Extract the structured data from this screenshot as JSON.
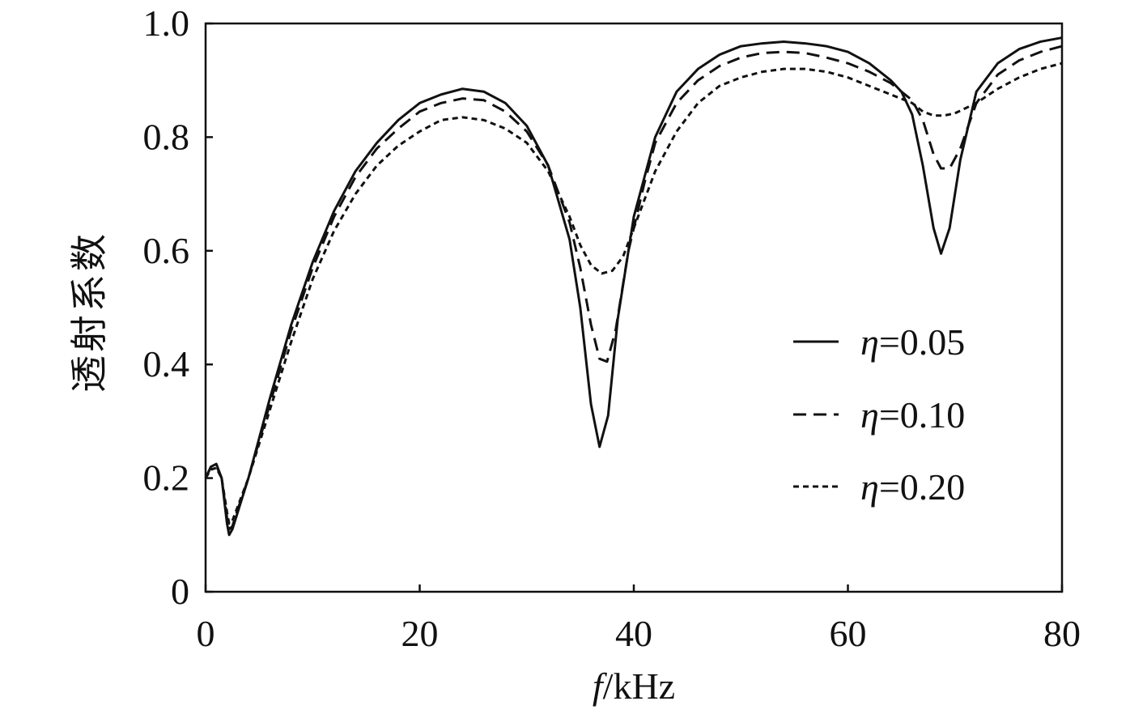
{
  "chart_data": {
    "type": "line",
    "title": "",
    "xlabel_var": "f",
    "xlabel_unit": "/kHz",
    "ylabel": "透射系数",
    "xlim": [
      0,
      80
    ],
    "ylim": [
      0,
      1.0
    ],
    "xticks": [
      0,
      20,
      40,
      60,
      80
    ],
    "xtick_labels": [
      "0",
      "20",
      "40",
      "60",
      "80"
    ],
    "yticks": [
      0,
      0.2,
      0.4,
      0.6,
      0.8,
      1.0
    ],
    "ytick_labels": [
      "0",
      "0.2",
      "0.4",
      "0.6",
      "0.8",
      "1.0"
    ],
    "grid": false,
    "legend_position": "right",
    "series": [
      {
        "name": "η=0.05",
        "legend_symbol": "η",
        "legend_value": "=0.05",
        "dash": "solid",
        "points": [
          [
            0,
            0.2
          ],
          [
            0.5,
            0.22
          ],
          [
            1,
            0.225
          ],
          [
            1.5,
            0.2
          ],
          [
            2,
            0.12
          ],
          [
            2.2,
            0.1
          ],
          [
            2.5,
            0.11
          ],
          [
            3,
            0.14
          ],
          [
            4,
            0.2
          ],
          [
            5,
            0.27
          ],
          [
            6,
            0.34
          ],
          [
            8,
            0.47
          ],
          [
            10,
            0.58
          ],
          [
            12,
            0.67
          ],
          [
            14,
            0.74
          ],
          [
            16,
            0.79
          ],
          [
            18,
            0.83
          ],
          [
            20,
            0.86
          ],
          [
            22,
            0.875
          ],
          [
            24,
            0.885
          ],
          [
            26,
            0.88
          ],
          [
            28,
            0.86
          ],
          [
            30,
            0.82
          ],
          [
            32,
            0.75
          ],
          [
            34,
            0.62
          ],
          [
            35,
            0.5
          ],
          [
            36,
            0.33
          ],
          [
            36.8,
            0.255
          ],
          [
            37.6,
            0.31
          ],
          [
            38.5,
            0.48
          ],
          [
            40,
            0.66
          ],
          [
            42,
            0.8
          ],
          [
            44,
            0.88
          ],
          [
            46,
            0.92
          ],
          [
            48,
            0.945
          ],
          [
            50,
            0.96
          ],
          [
            52,
            0.965
          ],
          [
            54,
            0.968
          ],
          [
            56,
            0.965
          ],
          [
            58,
            0.96
          ],
          [
            60,
            0.95
          ],
          [
            62,
            0.93
          ],
          [
            64,
            0.9
          ],
          [
            65,
            0.88
          ],
          [
            66,
            0.84
          ],
          [
            67,
            0.75
          ],
          [
            68,
            0.64
          ],
          [
            68.7,
            0.595
          ],
          [
            69.5,
            0.64
          ],
          [
            70.5,
            0.76
          ],
          [
            72,
            0.88
          ],
          [
            74,
            0.93
          ],
          [
            76,
            0.955
          ],
          [
            78,
            0.968
          ],
          [
            80,
            0.975
          ]
        ]
      },
      {
        "name": "η=0.10",
        "legend_symbol": "η",
        "legend_value": "=0.10",
        "dash": "dashed",
        "points": [
          [
            0,
            0.2
          ],
          [
            0.5,
            0.22
          ],
          [
            1,
            0.222
          ],
          [
            1.5,
            0.2
          ],
          [
            2,
            0.13
          ],
          [
            2.2,
            0.11
          ],
          [
            2.5,
            0.115
          ],
          [
            3,
            0.145
          ],
          [
            4,
            0.2
          ],
          [
            5,
            0.265
          ],
          [
            6,
            0.33
          ],
          [
            8,
            0.46
          ],
          [
            10,
            0.57
          ],
          [
            12,
            0.66
          ],
          [
            14,
            0.73
          ],
          [
            16,
            0.78
          ],
          [
            18,
            0.815
          ],
          [
            20,
            0.845
          ],
          [
            22,
            0.86
          ],
          [
            24,
            0.868
          ],
          [
            26,
            0.865
          ],
          [
            28,
            0.845
          ],
          [
            30,
            0.81
          ],
          [
            32,
            0.75
          ],
          [
            34,
            0.65
          ],
          [
            35,
            0.57
          ],
          [
            36,
            0.47
          ],
          [
            36.8,
            0.41
          ],
          [
            37.5,
            0.405
          ],
          [
            38.3,
            0.46
          ],
          [
            39.5,
            0.6
          ],
          [
            41,
            0.72
          ],
          [
            42,
            0.79
          ],
          [
            44,
            0.86
          ],
          [
            46,
            0.9
          ],
          [
            48,
            0.925
          ],
          [
            50,
            0.94
          ],
          [
            52,
            0.948
          ],
          [
            54,
            0.95
          ],
          [
            56,
            0.948
          ],
          [
            58,
            0.94
          ],
          [
            60,
            0.93
          ],
          [
            62,
            0.915
          ],
          [
            64,
            0.895
          ],
          [
            66,
            0.865
          ],
          [
            67,
            0.83
          ],
          [
            68,
            0.77
          ],
          [
            68.7,
            0.745
          ],
          [
            69.5,
            0.745
          ],
          [
            70.5,
            0.78
          ],
          [
            72,
            0.86
          ],
          [
            74,
            0.91
          ],
          [
            76,
            0.935
          ],
          [
            78,
            0.95
          ],
          [
            80,
            0.96
          ]
        ]
      },
      {
        "name": "η=0.20",
        "legend_symbol": "η",
        "legend_value": "=0.20",
        "dash": "dotted",
        "points": [
          [
            0,
            0.2
          ],
          [
            0.5,
            0.215
          ],
          [
            1,
            0.218
          ],
          [
            1.5,
            0.2
          ],
          [
            2,
            0.14
          ],
          [
            2.2,
            0.12
          ],
          [
            2.5,
            0.125
          ],
          [
            3,
            0.15
          ],
          [
            4,
            0.2
          ],
          [
            5,
            0.26
          ],
          [
            6,
            0.32
          ],
          [
            8,
            0.44
          ],
          [
            10,
            0.55
          ],
          [
            12,
            0.635
          ],
          [
            14,
            0.7
          ],
          [
            16,
            0.75
          ],
          [
            18,
            0.785
          ],
          [
            20,
            0.81
          ],
          [
            22,
            0.83
          ],
          [
            24,
            0.835
          ],
          [
            26,
            0.83
          ],
          [
            28,
            0.815
          ],
          [
            30,
            0.79
          ],
          [
            32,
            0.74
          ],
          [
            34,
            0.66
          ],
          [
            35,
            0.61
          ],
          [
            36,
            0.575
          ],
          [
            37,
            0.56
          ],
          [
            38,
            0.565
          ],
          [
            39,
            0.59
          ],
          [
            40,
            0.64
          ],
          [
            42,
            0.74
          ],
          [
            44,
            0.81
          ],
          [
            46,
            0.86
          ],
          [
            48,
            0.89
          ],
          [
            50,
            0.905
          ],
          [
            52,
            0.915
          ],
          [
            54,
            0.92
          ],
          [
            56,
            0.92
          ],
          [
            58,
            0.915
          ],
          [
            60,
            0.905
          ],
          [
            62,
            0.89
          ],
          [
            64,
            0.875
          ],
          [
            66,
            0.86
          ],
          [
            67,
            0.845
          ],
          [
            68,
            0.838
          ],
          [
            69,
            0.838
          ],
          [
            70,
            0.842
          ],
          [
            72,
            0.86
          ],
          [
            74,
            0.885
          ],
          [
            76,
            0.905
          ],
          [
            78,
            0.92
          ],
          [
            80,
            0.93
          ]
        ]
      }
    ]
  }
}
